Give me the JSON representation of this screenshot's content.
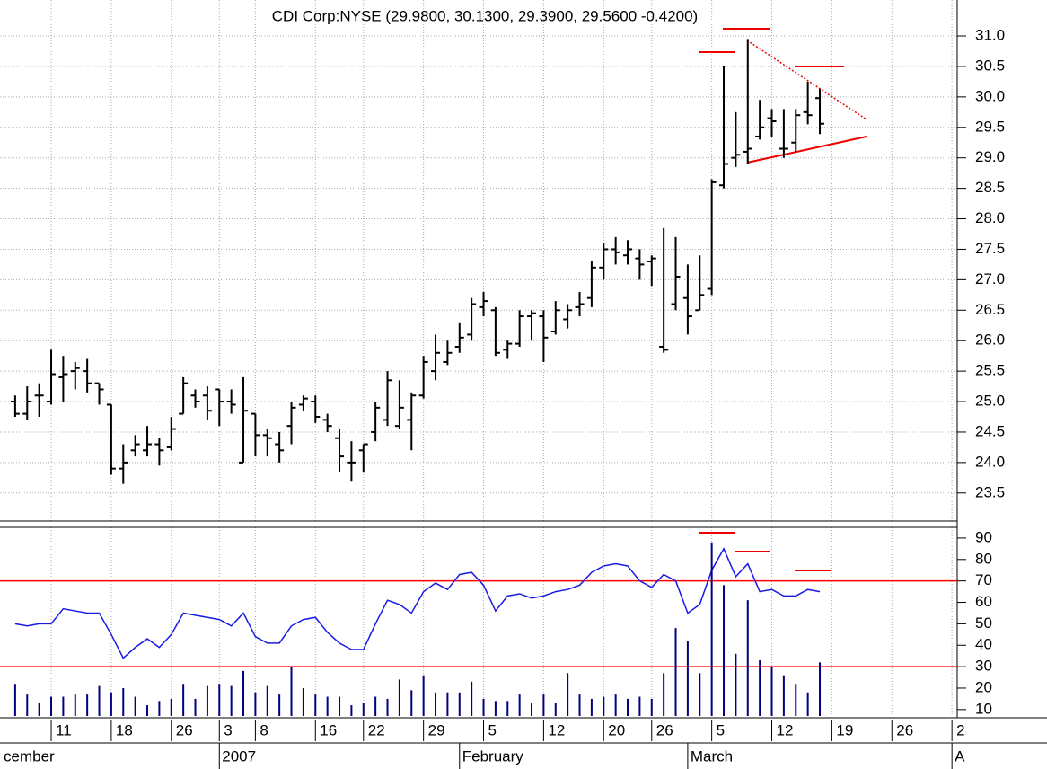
{
  "chart_data": [
    {
      "type": "ohlc",
      "title": "CDI Corp:NYSE (29.9800, 30.1300, 29.3900, 29.5600 -0.4200)",
      "categories": [
        null,
        null,
        null,
        "11",
        null,
        null,
        null,
        null,
        "18",
        null,
        null,
        null,
        null,
        "26",
        null,
        null,
        null,
        "3",
        null,
        null,
        "8",
        null,
        null,
        null,
        null,
        "16",
        null,
        null,
        null,
        "22",
        null,
        null,
        null,
        null,
        "29",
        null,
        null,
        null,
        null,
        "5",
        null,
        null,
        null,
        null,
        "12",
        null,
        null,
        null,
        null,
        "20",
        null,
        null,
        null,
        "26",
        null,
        null,
        null,
        null,
        "5",
        null,
        null,
        null,
        null,
        "12",
        null,
        null,
        null,
        null,
        "19",
        null,
        null,
        null,
        null,
        "26",
        null,
        null,
        null,
        null,
        "2"
      ],
      "months": [
        "cember",
        null,
        null,
        null,
        null,
        null,
        null,
        null,
        null,
        null,
        null,
        null,
        null,
        null,
        null,
        null,
        null,
        "2007",
        null,
        null,
        null,
        null,
        null,
        null,
        null,
        null,
        null,
        null,
        null,
        null,
        null,
        null,
        null,
        null,
        null,
        null,
        null,
        "February",
        null,
        null,
        null,
        null,
        null,
        null,
        null,
        null,
        null,
        null,
        null,
        null,
        null,
        null,
        null,
        null,
        null,
        null,
        "March",
        null,
        null,
        null,
        null,
        null,
        null,
        null,
        null,
        null,
        null,
        null,
        null,
        null,
        null,
        null,
        null,
        null,
        null,
        null,
        null,
        null,
        "A"
      ],
      "open": [
        25.0,
        24.8,
        25.1,
        25.0,
        25.4,
        25.5,
        25.5,
        25.3,
        24.95,
        23.9,
        24.2,
        24.2,
        24.3,
        24.25,
        24.8,
        25.1,
        25.1,
        25.2,
        25.0,
        24.0,
        24.8,
        24.45,
        24.3,
        24.6,
        24.95,
        25.0,
        24.7,
        24.4,
        24.0,
        24.2,
        24.5,
        24.7,
        24.6,
        24.7,
        25.1,
        25.5,
        25.65,
        25.9,
        26.1,
        26.55,
        26.5,
        25.85,
        25.95,
        26.4,
        26.4,
        26.15,
        26.35,
        26.55,
        26.7,
        27.2,
        27.5,
        27.4,
        27.35,
        27.3,
        25.9,
        26.6,
        26.7,
        26.5,
        26.85,
        28.55,
        29.0,
        29.1,
        29.35,
        29.65,
        29.15,
        29.25,
        29.75,
        29.98,
        null,
        null,
        null,
        null,
        null,
        null,
        null,
        null,
        null,
        null,
        null
      ],
      "high": [
        25.1,
        25.25,
        25.3,
        25.85,
        25.75,
        25.65,
        25.7,
        25.3,
        24.95,
        24.3,
        24.45,
        24.6,
        24.4,
        24.75,
        25.4,
        25.2,
        25.25,
        25.2,
        25.2,
        25.4,
        24.8,
        24.55,
        24.5,
        25.0,
        25.1,
        25.1,
        24.8,
        24.55,
        24.35,
        24.3,
        25.0,
        25.5,
        25.35,
        25.15,
        25.75,
        26.1,
        26.0,
        26.3,
        26.7,
        26.8,
        26.55,
        26.0,
        26.5,
        26.5,
        26.5,
        26.65,
        26.6,
        26.8,
        27.3,
        27.6,
        27.7,
        27.65,
        27.5,
        27.4,
        27.85,
        27.7,
        27.25,
        27.4,
        28.65,
        30.5,
        29.75,
        30.95,
        29.95,
        29.8,
        29.8,
        29.8,
        30.25,
        30.13,
        null,
        null,
        null,
        null,
        null,
        null,
        null,
        null,
        null,
        null,
        null
      ],
      "low": [
        24.75,
        24.7,
        24.75,
        24.95,
        25.0,
        25.2,
        25.15,
        24.95,
        23.8,
        23.65,
        24.1,
        24.1,
        23.95,
        24.2,
        24.8,
        24.9,
        24.7,
        24.6,
        24.8,
        24.0,
        24.1,
        24.1,
        24.0,
        24.3,
        24.85,
        24.65,
        24.5,
        23.85,
        23.7,
        23.85,
        24.35,
        24.6,
        24.55,
        24.2,
        25.05,
        25.35,
        25.6,
        25.8,
        26.0,
        26.4,
        25.75,
        25.7,
        25.9,
        26.0,
        25.65,
        26.1,
        26.2,
        26.4,
        26.55,
        27.0,
        27.25,
        27.25,
        27.0,
        26.9,
        25.8,
        26.5,
        26.1,
        26.5,
        26.75,
        28.5,
        28.85,
        28.9,
        29.3,
        29.35,
        29.0,
        29.1,
        29.55,
        29.39,
        null,
        null,
        null,
        null,
        null,
        null,
        null,
        null,
        null,
        null,
        null
      ],
      "close": [
        24.8,
        25.0,
        25.1,
        25.45,
        25.45,
        25.55,
        25.3,
        25.2,
        23.9,
        24.0,
        24.3,
        24.3,
        24.2,
        24.55,
        25.3,
        25.0,
        24.85,
        25.0,
        24.95,
        24.85,
        24.45,
        24.4,
        24.2,
        24.9,
        25.05,
        24.75,
        24.6,
        24.1,
        24.0,
        24.3,
        24.9,
        25.35,
        24.9,
        25.1,
        25.65,
        25.8,
        25.8,
        26.05,
        26.6,
        26.65,
        25.8,
        25.95,
        26.4,
        26.45,
        26.05,
        26.5,
        26.5,
        26.6,
        27.2,
        27.5,
        27.45,
        27.5,
        27.25,
        27.35,
        25.85,
        27.05,
        26.4,
        26.75,
        28.6,
        28.9,
        29.05,
        29.15,
        29.5,
        29.6,
        29.15,
        29.7,
        29.7,
        29.56,
        null,
        null,
        null,
        null,
        null,
        null,
        null,
        null,
        null,
        null,
        null
      ],
      "color": "#000000",
      "ylim": [
        23.04,
        31.59
      ],
      "yticks": [
        {
          "value": 23.5,
          "label": "23.5"
        },
        {
          "value": 24,
          "label": "24.0"
        },
        {
          "value": 24.5,
          "label": "24.5"
        },
        {
          "value": 25,
          "label": "25.0"
        },
        {
          "value": 25.5,
          "label": "25.5"
        },
        {
          "value": 26,
          "label": "26.0"
        },
        {
          "value": 26.5,
          "label": "26.5"
        },
        {
          "value": 27,
          "label": "27.0"
        },
        {
          "value": 27.5,
          "label": "27.5"
        },
        {
          "value": 28,
          "label": "28.0"
        },
        {
          "value": 28.5,
          "label": "28.5"
        },
        {
          "value": 29,
          "label": "29.0"
        },
        {
          "value": 29.5,
          "label": "29.5"
        },
        {
          "value": 30,
          "label": "30.0"
        },
        {
          "value": 30.5,
          "label": "30.5"
        },
        {
          "value": 31,
          "label": "31.0"
        }
      ],
      "grid": true
    },
    {
      "type": "line",
      "series": [
        {
          "kind": "line",
          "color": "#1a1ae6",
          "values": [
            50,
            49,
            50,
            50,
            57,
            56,
            55,
            55,
            45,
            34,
            39,
            43,
            39,
            45,
            55,
            54,
            53,
            52,
            49,
            55,
            44,
            41,
            41,
            49,
            52,
            53,
            46,
            41,
            38,
            38,
            50,
            61,
            59,
            55,
            65,
            69,
            66,
            73,
            74,
            68,
            56,
            63,
            64,
            62,
            63,
            65,
            66,
            68,
            74,
            77,
            78,
            77,
            70,
            67,
            73,
            70,
            55,
            59,
            75,
            85,
            72,
            78,
            65,
            66,
            63,
            63,
            66,
            65
          ]
        },
        {
          "kind": "bar",
          "color": "#000080",
          "values": [
            22,
            17,
            13,
            16,
            16,
            17,
            17,
            21,
            18,
            20,
            16,
            12,
            14,
            15,
            22,
            15,
            21,
            22,
            21,
            28,
            18,
            21,
            17,
            30,
            20,
            17,
            16,
            16,
            12,
            13,
            16,
            15,
            24,
            19,
            26,
            18,
            18,
            18,
            23,
            15,
            14,
            14,
            17,
            13,
            17,
            13,
            27,
            17,
            15,
            16,
            17,
            15,
            16,
            15,
            27,
            48,
            42,
            27,
            88,
            68,
            36,
            61,
            33,
            30,
            26,
            22,
            18,
            32
          ]
        }
      ],
      "reference_lines": [
        70,
        30
      ],
      "reference_color": "#ff0000",
      "ylim": [
        7,
        95
      ],
      "yticks": [
        10,
        20,
        30,
        40,
        50,
        60,
        70,
        80,
        90
      ]
    }
  ]
}
